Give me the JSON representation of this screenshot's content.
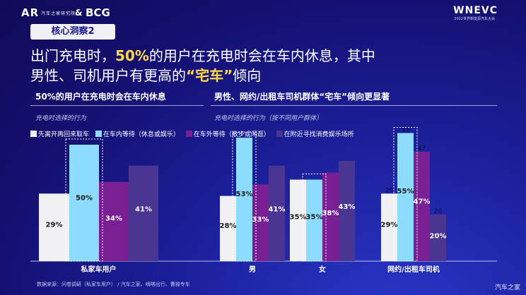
{
  "logos": {
    "left": "AR",
    "left_sub": "汽车之家研究院",
    "amp": "&",
    "right": "BCG",
    "event": "WNEVC",
    "event_sub": "2022世界新能源汽车大会"
  },
  "badge": "核心洞察2",
  "headline": {
    "line1_a": "出门充电时，",
    "line1_hl": "50%",
    "line1_b": "的用户在充电时会在车内休息，其中",
    "line2_a": "男性、司机用户有更高的",
    "line2_hl": "“宅车”",
    "line2_b": "倾向"
  },
  "sections": {
    "left_title": "50%的用户在充电时会在车内休息",
    "right_title": "男性、网约/出租车司机群体“宅车”倾向更显著",
    "left_sub": "充电时选择的行为",
    "right_sub": "充电时选择的行为（按不同用户群体）"
  },
  "legend": [
    {
      "label": "先离开再回来取车",
      "color": "#f1f1f3"
    },
    {
      "label": "在车内等待（休息或娱乐）",
      "color": "#8ddcff"
    },
    {
      "label": "在车外等待（散步或闲逛）",
      "color": "#7a1e93"
    },
    {
      "label": "在附近寻找消费娱乐场所",
      "color": "#4a3590"
    }
  ],
  "chart_data": {
    "type": "bar",
    "categories": [
      "私家车用户",
      "男",
      "女",
      "网约/出租车司机"
    ],
    "series": [
      {
        "name": "先离开再回来取车",
        "values": [
          29,
          28,
          35,
          29
        ]
      },
      {
        "name": "在车内等待（休息或娱乐）",
        "values": [
          50,
          53,
          35,
          55
        ]
      },
      {
        "name": "在车外等待（散步或闲逛）",
        "values": [
          34,
          33,
          38,
          47
        ]
      },
      {
        "name": "在附近寻找消费娱乐场所",
        "values": [
          41,
          41,
          43,
          20
        ]
      }
    ],
    "value_labels": [
      [
        "29%",
        "50%",
        "34%",
        "41%"
      ],
      [
        "28%",
        "53%",
        "33%",
        "41%"
      ],
      [
        "35%",
        "35%",
        "38%",
        "43%"
      ],
      [
        "29%",
        "55%",
        "47%",
        "20%"
      ]
    ],
    "top_labels": [
      [
        "",
        "",
        "",
        ""
      ],
      [
        "",
        "",
        "",
        ""
      ],
      [
        "",
        "",
        "",
        ""
      ],
      [
        "29",
        "55",
        "47",
        "20"
      ]
    ],
    "highlight_series": "在车内等待（休息或娱乐）",
    "colors": [
      "#f1f1f3",
      "#8ddcff",
      "#7a1e93",
      "#4a3590"
    ],
    "label_colors": [
      "#1a1a1a",
      "#1a1a1a",
      "#ffffff",
      "#ffffff"
    ]
  },
  "source": "数据来源：问卷调研（私家车用户） / 汽车之家、嘀嗒出行、曹操专车",
  "watermark": "汽车之家"
}
